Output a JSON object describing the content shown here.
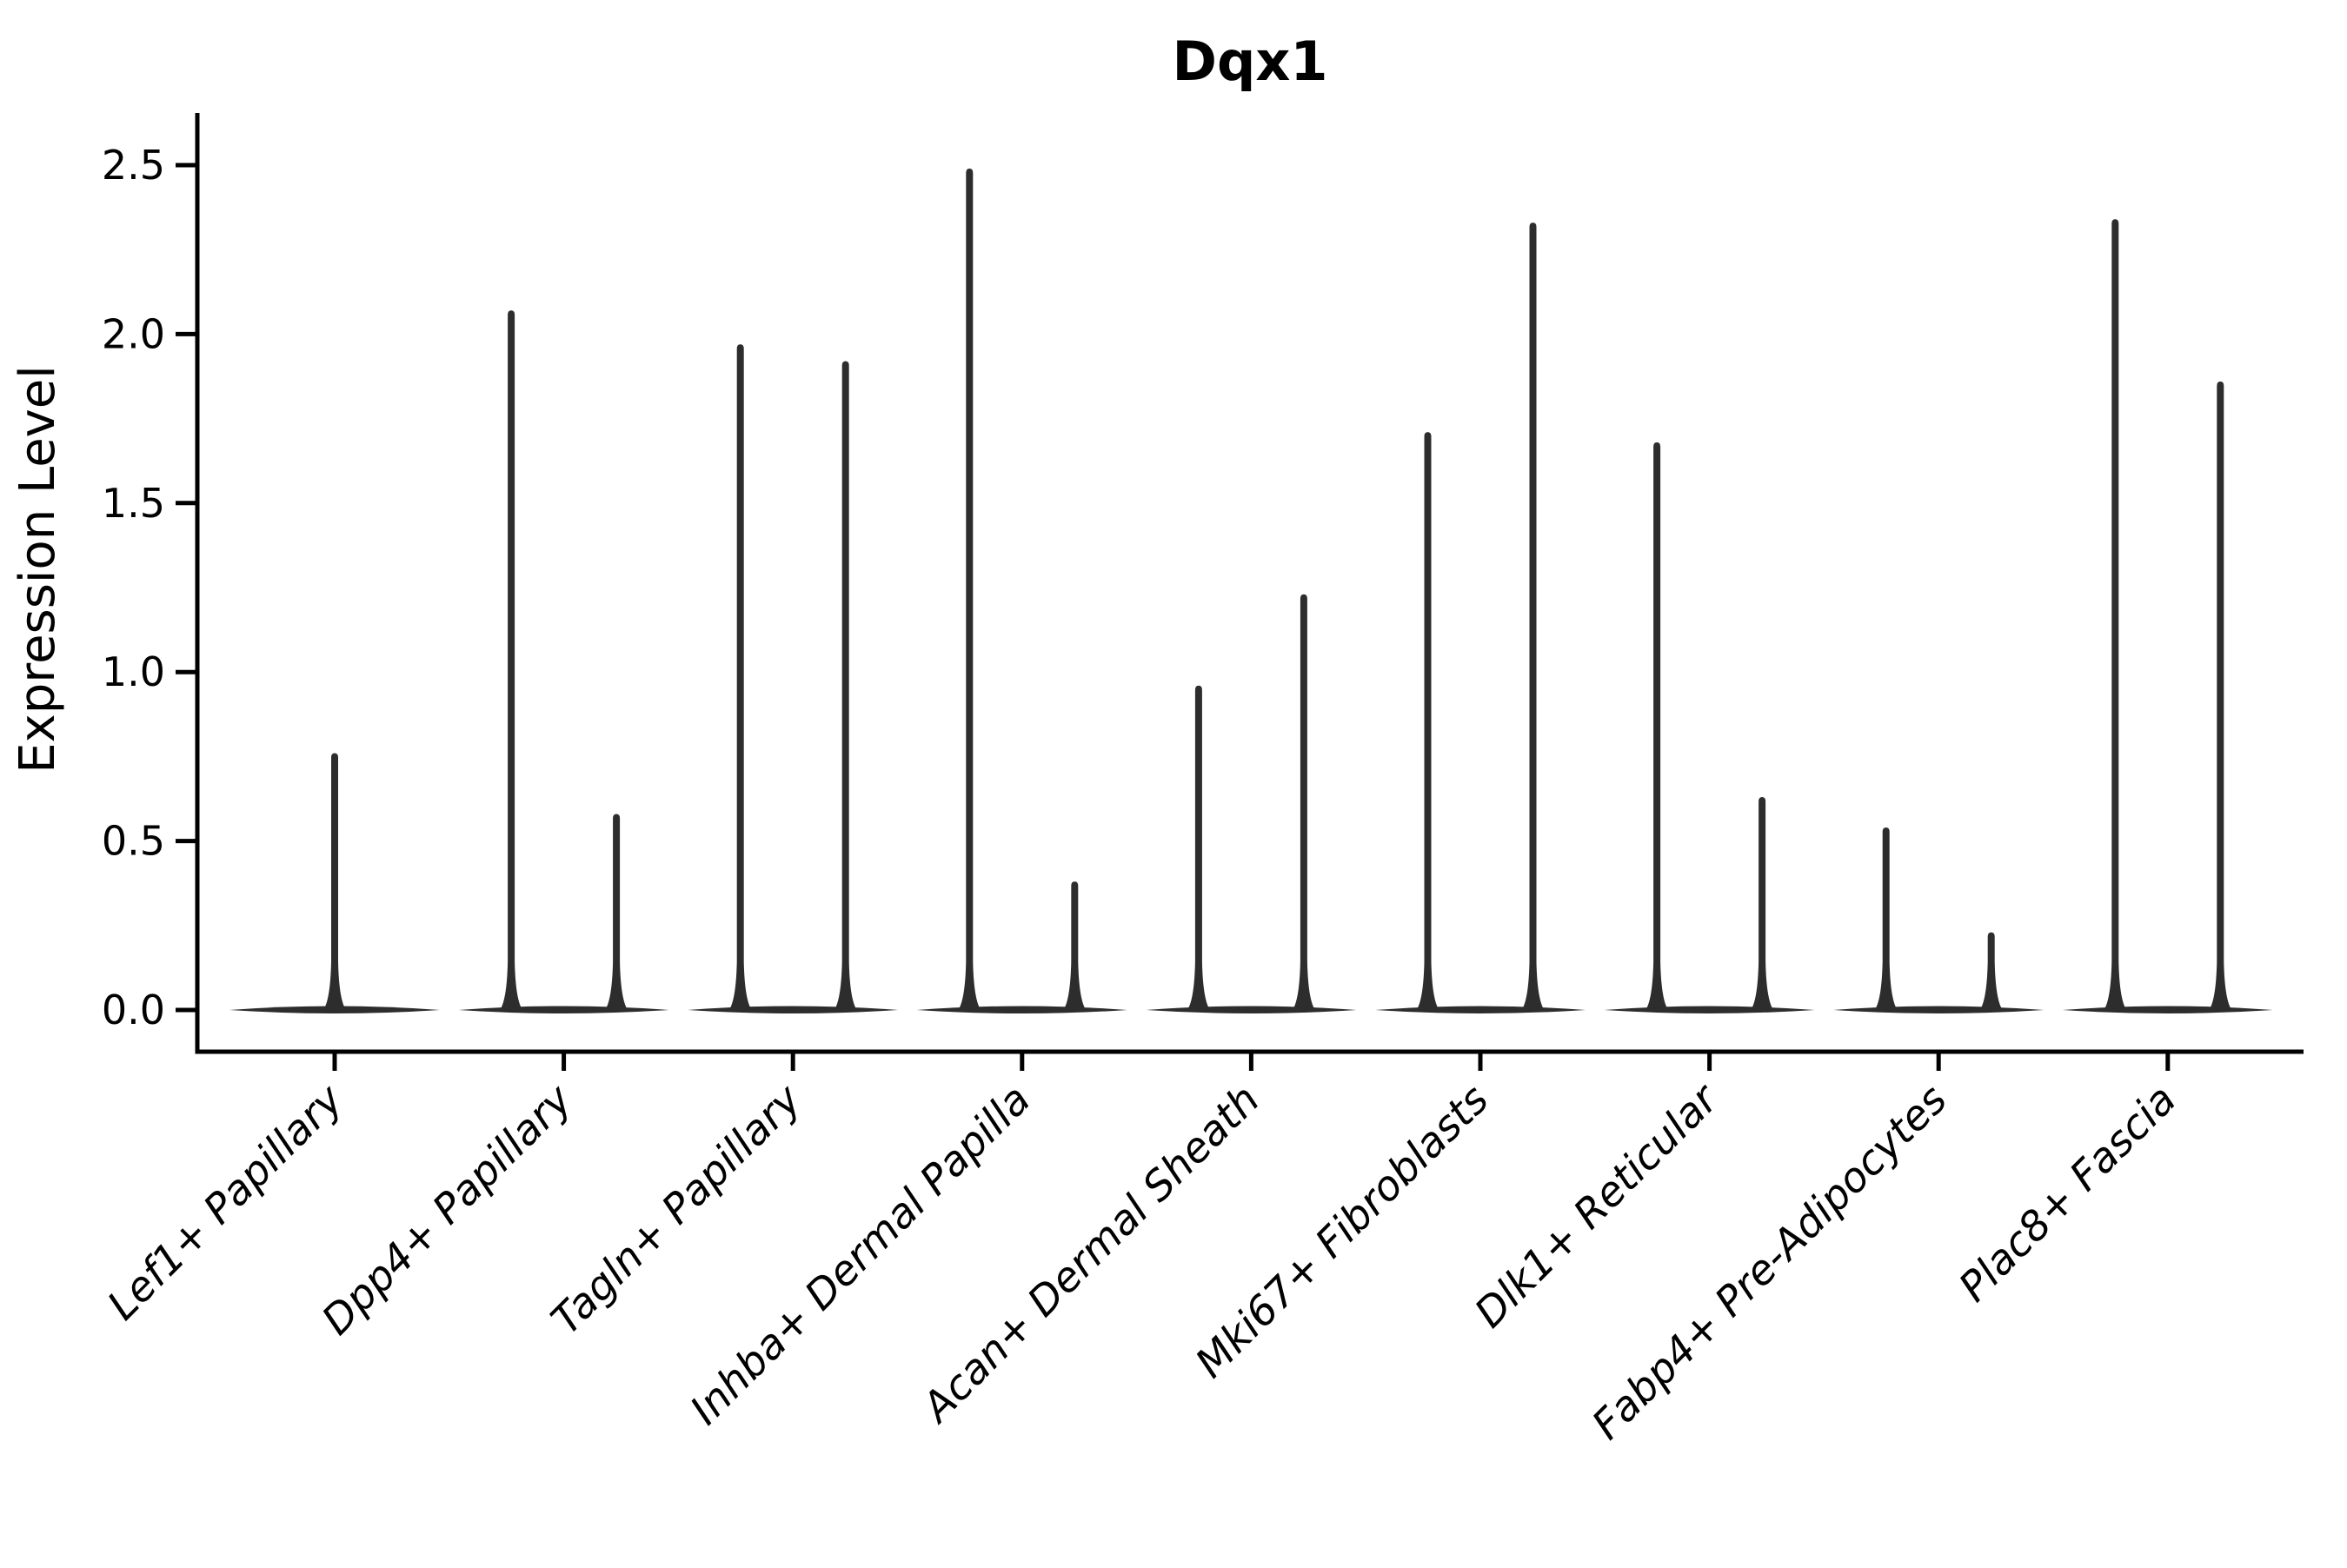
{
  "page": {
    "background_color": "#ffffff"
  },
  "chart_data": {
    "type": "violin",
    "title": "Dqx1",
    "xlabel": "",
    "ylabel": "Expression Level",
    "ylim": [
      0,
      2.65
    ],
    "yticks": [
      0.0,
      0.5,
      1.0,
      1.5,
      2.0,
      2.5
    ],
    "ytick_labels": [
      "0.0",
      "0.5",
      "1.0",
      "1.5",
      "2.0",
      "2.5"
    ],
    "grid": false,
    "legend": false,
    "x_label_rotation_deg": 45,
    "x_label_style": "italic",
    "categories": [
      "Lef1+ Papillary",
      "Dpp4+ Papillary",
      "Tagln+ Papillary",
      "Inhba+ Dermal Papilla",
      "Acan+ Dermal Sheath",
      "Mki67+ Fibroblasts",
      "Dlk1+ Reticular",
      "Fabp4+ Pre-Adipocytes",
      "Plac8+ Fascia"
    ],
    "violins": [
      {
        "category": "Lef1+ Papillary",
        "zero_inflated_base": true,
        "spikes": [
          {
            "offset": "center",
            "peak": 0.76
          }
        ]
      },
      {
        "category": "Dpp4+ Papillary",
        "zero_inflated_base": true,
        "spikes": [
          {
            "offset": "left",
            "peak": 2.07
          },
          {
            "offset": "right",
            "peak": 0.58
          }
        ]
      },
      {
        "category": "Tagln+ Papillary",
        "zero_inflated_base": true,
        "spikes": [
          {
            "offset": "left",
            "peak": 1.97
          },
          {
            "offset": "right",
            "peak": 1.92
          }
        ]
      },
      {
        "category": "Inhba+ Dermal Papilla",
        "zero_inflated_base": true,
        "spikes": [
          {
            "offset": "left",
            "peak": 2.49
          },
          {
            "offset": "right",
            "peak": 0.38
          }
        ]
      },
      {
        "category": "Acan+ Dermal Sheath",
        "zero_inflated_base": true,
        "spikes": [
          {
            "offset": "left",
            "peak": 0.96
          },
          {
            "offset": "right",
            "peak": 1.23
          }
        ]
      },
      {
        "category": "Mki67+ Fibroblasts",
        "zero_inflated_base": true,
        "spikes": [
          {
            "offset": "left",
            "peak": 1.71
          },
          {
            "offset": "right",
            "peak": 2.33
          }
        ]
      },
      {
        "category": "Dlk1+ Reticular",
        "zero_inflated_base": true,
        "spikes": [
          {
            "offset": "left",
            "peak": 1.68
          },
          {
            "offset": "right",
            "peak": 0.63
          }
        ]
      },
      {
        "category": "Fabp4+ Pre-Adipocytes",
        "zero_inflated_base": true,
        "spikes": [
          {
            "offset": "left",
            "peak": 0.54
          },
          {
            "offset": "right",
            "peak": 0.23
          }
        ]
      },
      {
        "category": "Plac8+ Fascia",
        "zero_inflated_base": true,
        "spikes": [
          {
            "offset": "left",
            "peak": 2.34
          },
          {
            "offset": "right",
            "peak": 1.86
          }
        ]
      }
    ],
    "colors": {
      "violin_line": "#2d2d2d",
      "axis": "#000000",
      "text": "#000000",
      "background": "#ffffff"
    }
  }
}
